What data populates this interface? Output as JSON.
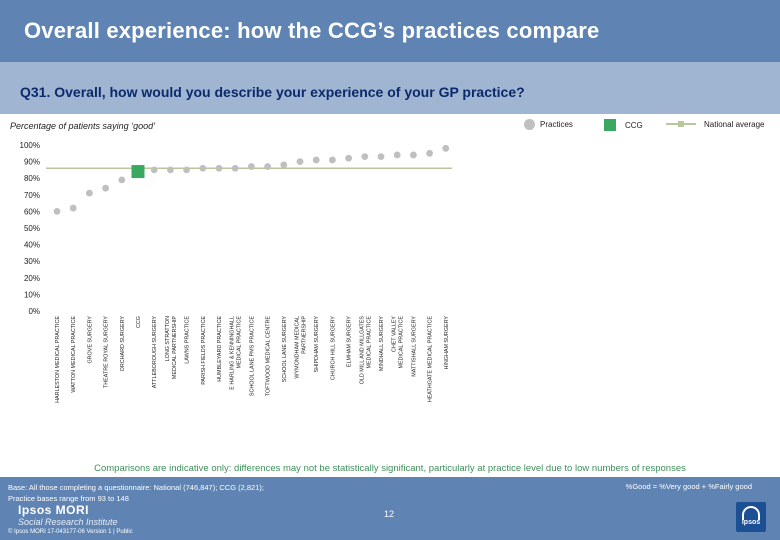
{
  "title": "Overall experience: how the CCG’s practices compare",
  "question": "Q31. Overall, how would you describe your experience of your GP practice?",
  "subtitle": "Percentage of patients saying ‘good’",
  "legend": {
    "practices": "Practices",
    "ccg": "CCG",
    "national": "National average"
  },
  "chart_data": {
    "type": "scatter",
    "title": "Percentage of patients saying ‘good’",
    "ylim": [
      0,
      100
    ],
    "ytick_labels": [
      "0%",
      "10%",
      "20%",
      "30%",
      "40%",
      "50%",
      "60%",
      "70%",
      "80%",
      "90%",
      "100%"
    ],
    "national_average": 86,
    "categories": [
      "HARLESTON MEDICAL PRACTICE",
      "WATTON MEDICAL PRACTICE",
      "GROVE SURGERY",
      "THEATRE ROYAL SURGERY",
      "ORCHARD SURGERY",
      "CCG",
      "ATTLEBOROUGH SURGERY",
      "LONG STRATTON MEDICAL PARTNERSHIP",
      "LAWNS PRACTICE",
      "PARISH FIELDS PRACTICE",
      "HUMBLEYARD PRACTICE",
      "E HARLING & KENNINGHALL MEDICAL PRACTICE",
      "SCHOOL LANE PMS PRACTICE",
      "TOFTWOOD MEDICAL CENTRE",
      "SCHOOL LANE SURGERY",
      "WYMONDHAM MEDICAL PARTNERSHIP",
      "SHIPDHAM SURGERY",
      "CHURCH HILL SURGERY",
      "ELMHAM SURGERY",
      "OLD MILL AND MILLGATES MEDICAL PRACTICE",
      "MINDHALL SURGERY",
      "CHET VALLEY MEDICAL PRACTICE",
      "MATTISHALL SURGERY",
      "HEATHGATE MEDICAL PRACTICE",
      "HINGHAM SURGERY"
    ],
    "values": [
      60,
      62,
      71,
      74,
      79,
      84,
      85,
      85,
      85,
      86,
      86,
      86,
      87,
      87,
      88,
      90,
      91,
      91,
      92,
      93,
      93,
      94,
      94,
      95,
      98
    ],
    "ccg_index": 5
  },
  "colors": {
    "practice": "#bfbfbf",
    "ccg": "#3aa860",
    "national": "#b9c79a",
    "header": "#5f84b3"
  },
  "note": "Comparisons are indicative only: differences may not be statistically significant, particularly at practice level due to low numbers of responses",
  "footer": {
    "base_line1": "Base: All those completing a questionnaire: National (746,847); CCG (2,821);",
    "base_line2": "Practice bases range from 93 to 148",
    "good_note": "%Good = %Very good + %Fairly good",
    "page": "12",
    "logo_name": "Ipsos MORI",
    "logo_sub": "Social Research Institute",
    "copyright": "© Ipsos MORI      17-043177-06 Version 1 | Public",
    "ipsos": "Ipsos"
  }
}
